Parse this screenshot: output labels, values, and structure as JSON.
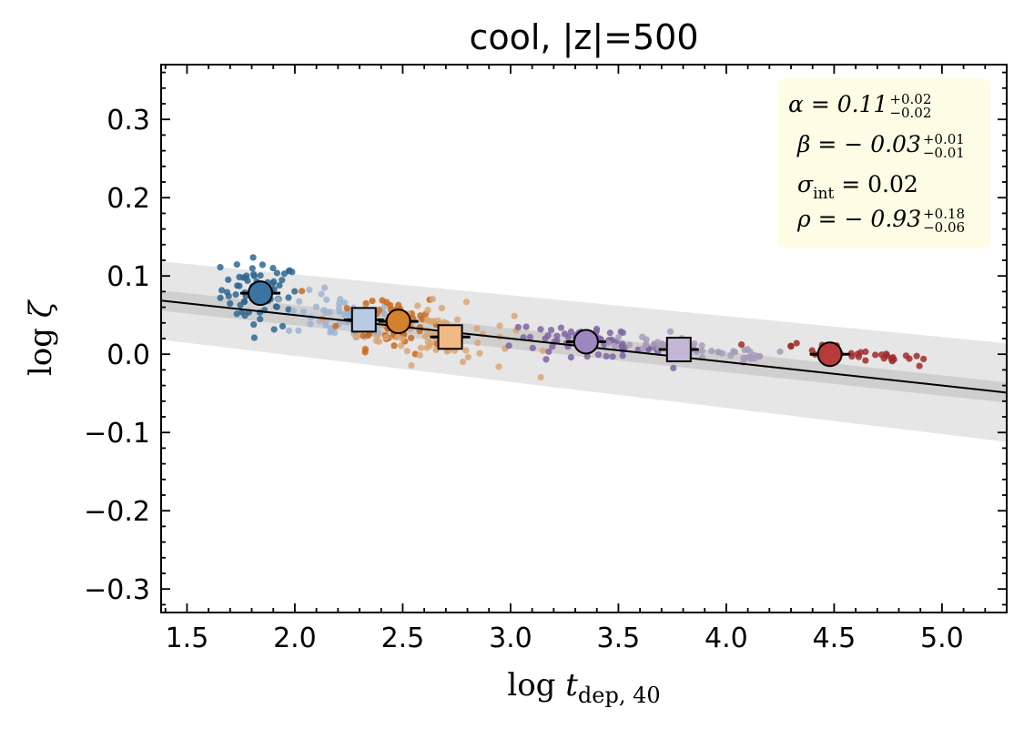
{
  "chart_data": {
    "type": "scatter",
    "title": "cool, |z|=500",
    "xlabel": "log t_dep, 40",
    "ylabel": "log ζ",
    "xlim": [
      1.38,
      5.3
    ],
    "ylim": [
      -0.33,
      0.37
    ],
    "xticks": [
      1.5,
      2.0,
      2.5,
      3.0,
      3.5,
      4.0,
      4.5,
      5.0
    ],
    "xticklabels": [
      "1.5",
      "2.0",
      "2.5",
      "3.0",
      "3.5",
      "4.0",
      "4.5",
      "5.0"
    ],
    "yticks": [
      -0.3,
      -0.2,
      -0.1,
      0.0,
      0.1,
      0.2,
      0.3
    ],
    "yticklabels": [
      "−0.3",
      "−0.2",
      "−0.1",
      "0.0",
      "0.1",
      "0.2",
      "0.3"
    ],
    "fit": {
      "intercept": 0.11,
      "slope": -0.03,
      "line_color": "#000000",
      "inner_band_halfwidth": 0.013,
      "outer_band": {
        "left_half": 0.05,
        "right_half": 0.063
      }
    },
    "series": [
      {
        "name": "group-1",
        "color": "#2f6690",
        "center": [
          1.84,
          0.078
        ],
        "spread": [
          0.09,
          0.022
        ],
        "n": 70,
        "marker_color": "#3b74a0",
        "marker": "circle"
      },
      {
        "name": "group-2",
        "color": "#9db4d2",
        "center": [
          2.22,
          0.045
        ],
        "spread": [
          0.13,
          0.015
        ],
        "n": 60,
        "marker_color": "#b9cbe3",
        "marker": "square",
        "marker_pos": [
          2.32,
          0.044
        ]
      },
      {
        "name": "group-3",
        "color": "#c8681b",
        "center": [
          2.45,
          0.045
        ],
        "spread": [
          0.12,
          0.02
        ],
        "n": 60,
        "marker_color": "#d4812b",
        "marker": "circle",
        "marker_pos": [
          2.48,
          0.042
        ]
      },
      {
        "name": "group-4",
        "color": "#dba574",
        "center": [
          2.65,
          0.025
        ],
        "spread": [
          0.18,
          0.02
        ],
        "n": 70,
        "marker_color": "#f1b983",
        "marker": "square",
        "marker_pos": [
          2.72,
          0.022
        ]
      },
      {
        "name": "group-5",
        "color": "#7e64a1",
        "center": [
          3.35,
          0.015
        ],
        "spread": [
          0.18,
          0.008
        ],
        "n": 70,
        "marker_color": "#9f86c0",
        "marker": "circle",
        "marker_pos": [
          3.35,
          0.016
        ]
      },
      {
        "name": "group-6",
        "color": "#a69bb8",
        "center": [
          3.85,
          0.006
        ],
        "spread": [
          0.25,
          0.006
        ],
        "n": 60,
        "marker_color": "#c4b7d6",
        "marker": "square",
        "marker_pos": [
          3.78,
          0.006
        ]
      },
      {
        "name": "group-7",
        "color": "#a02a2a",
        "center": [
          4.6,
          0.0
        ],
        "spread": [
          0.2,
          0.004
        ],
        "n": 35,
        "marker_color": "#b83a3a",
        "marker": "circle",
        "marker_pos": [
          4.48,
          0.0
        ]
      }
    ],
    "annotation": {
      "alpha": "α = 0.11",
      "alpha_up": "+0.02",
      "alpha_lo": "−0.02",
      "beta": "β = − 0.03",
      "beta_up": "+0.01",
      "beta_lo": "−0.01",
      "sigma": "σ",
      "sigma_sub": "int",
      "sigma_val": "= 0.02",
      "rho": "ρ = − 0.93",
      "rho_up": "+0.18",
      "rho_lo": "−0.06"
    }
  }
}
